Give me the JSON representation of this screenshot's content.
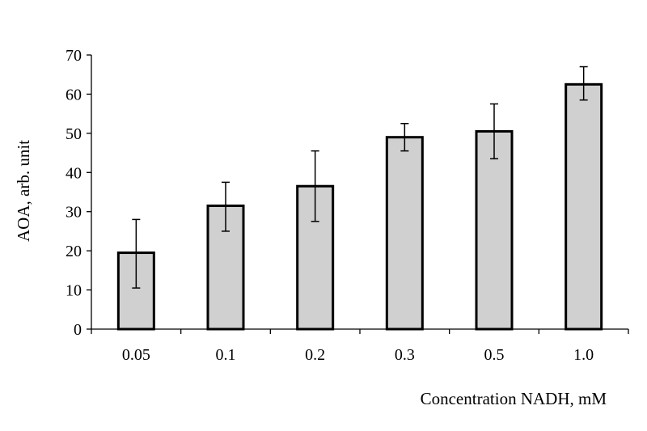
{
  "chart_data": {
    "type": "bar",
    "title": "",
    "xlabel": "Concentration NADH, mM",
    "ylabel": "AOA, arb. unit",
    "categories": [
      "0.05",
      "0.1",
      "0.2",
      "0.3",
      "0.5",
      "1.0"
    ],
    "values": [
      19.5,
      31.5,
      36.5,
      49,
      50.5,
      62.5
    ],
    "error_low": [
      10.5,
      25,
      27.5,
      45.5,
      43.5,
      58.5
    ],
    "error_high": [
      28,
      37.5,
      45.5,
      52.5,
      57.5,
      67
    ],
    "ylim": [
      0,
      70
    ],
    "yticks": [
      0,
      10,
      20,
      30,
      40,
      50,
      60,
      70
    ],
    "grid": false,
    "legend": "none",
    "colors": {
      "bar_fill": "#d0d0d0",
      "bar_stroke": "#000000",
      "axis": "#000000",
      "error_bar": "#000000"
    }
  }
}
